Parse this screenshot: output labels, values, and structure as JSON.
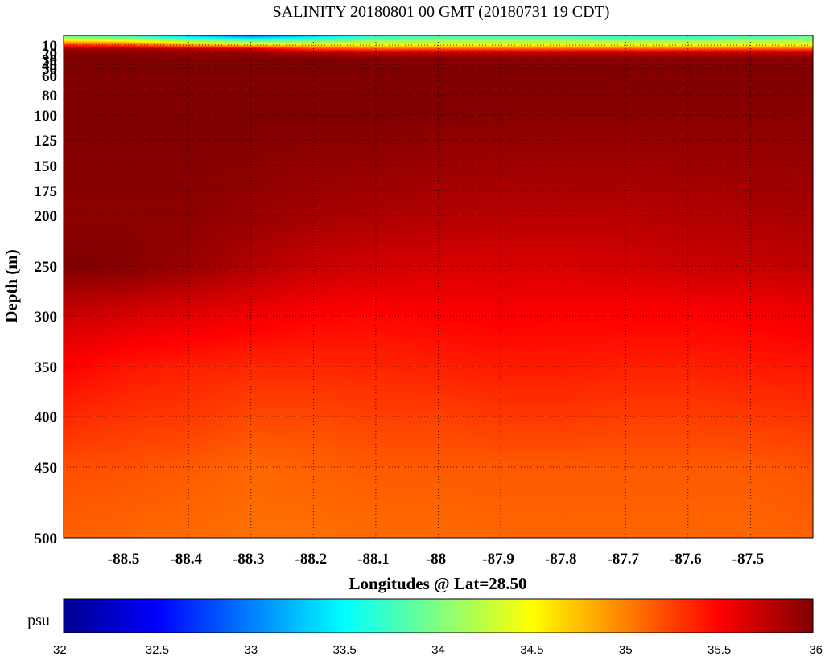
{
  "chart_data": {
    "type": "heatmap",
    "title": "SALINITY 20180801 00 GMT (20180731 19 CDT)",
    "xlabel": "Longitudes @ Lat=28.50",
    "ylabel": "Depth (m)",
    "xlim": [
      -88.6,
      -87.4
    ],
    "ylim": [
      500,
      5
    ],
    "x_ticks": [
      -88.5,
      -88.4,
      -88.3,
      -88.2,
      -88.1,
      -88,
      -87.9,
      -87.8,
      -87.7,
      -87.6,
      -87.5
    ],
    "x_tick_labels": [
      "-88.5",
      "-88.4",
      "-88.3",
      "-88.2",
      "-88.1",
      "-88",
      "-87.9",
      "-87.8",
      "-87.7",
      "-87.6",
      "-87.5"
    ],
    "y_ticks": [
      10,
      20,
      30,
      40,
      50,
      60,
      80,
      100,
      125,
      150,
      175,
      200,
      250,
      300,
      350,
      400,
      450,
      500
    ],
    "y_tick_labels": [
      "10",
      "20",
      "30",
      "40",
      "50",
      "60",
      "80",
      "100",
      "125",
      "150",
      "175",
      "200",
      "250",
      "300",
      "350",
      "400",
      "450",
      "500"
    ],
    "grid": true,
    "colorbar": {
      "unit": "psu",
      "range": [
        32,
        36
      ],
      "ticks": [
        32,
        32.5,
        33,
        33.5,
        34,
        34.5,
        35,
        35.5,
        36
      ],
      "tick_labels": [
        "32",
        "32.5",
        "33",
        "33.5",
        "34",
        "34.5",
        "35",
        "35.5",
        "36"
      ],
      "colormap": "jet"
    },
    "grid_x": [
      -88.6,
      -88.5,
      -88.4,
      -88.3,
      -88.2,
      -88.1,
      -88.0,
      -87.9,
      -87.8,
      -87.7,
      -87.6,
      -87.5,
      -87.4
    ],
    "grid_depth": [
      5,
      10,
      15,
      20,
      25,
      30,
      50,
      100,
      200,
      250,
      300,
      350,
      400,
      450,
      500
    ],
    "salinity": [
      [
        33.8,
        33.6,
        33.2,
        32.9,
        33.2,
        33.6,
        33.7,
        33.7,
        33.7,
        33.6,
        33.6,
        33.7,
        33.8
      ],
      [
        35.3,
        35.2,
        34.9,
        34.7,
        34.6,
        34.5,
        34.5,
        34.5,
        34.5,
        34.5,
        34.5,
        34.5,
        34.5
      ],
      [
        35.9,
        35.85,
        35.8,
        35.7,
        35.3,
        35.2,
        35.2,
        35.2,
        35.2,
        35.2,
        35.2,
        35.2,
        35.2
      ],
      [
        35.95,
        35.95,
        35.9,
        35.9,
        35.8,
        35.75,
        35.75,
        35.75,
        35.75,
        35.75,
        35.75,
        35.75,
        35.75
      ],
      [
        36.0,
        36.0,
        35.95,
        35.95,
        35.95,
        35.9,
        35.9,
        35.9,
        35.9,
        35.9,
        35.9,
        35.9,
        35.9
      ],
      [
        36.0,
        36.0,
        36.0,
        36.0,
        36.0,
        35.98,
        35.95,
        35.95,
        35.95,
        35.95,
        35.95,
        35.95,
        35.95
      ],
      [
        36.0,
        36.0,
        36.0,
        36.0,
        36.0,
        36.0,
        36.0,
        36.0,
        36.0,
        36.0,
        36.0,
        36.0,
        36.0
      ],
      [
        36.0,
        36.0,
        36.0,
        36.0,
        36.0,
        36.0,
        35.98,
        35.97,
        35.96,
        35.96,
        35.96,
        35.96,
        35.96
      ],
      [
        35.95,
        35.95,
        35.95,
        35.9,
        35.85,
        35.82,
        35.8,
        35.78,
        35.78,
        35.78,
        35.8,
        35.82,
        35.85
      ],
      [
        36.0,
        35.98,
        35.9,
        35.8,
        35.72,
        35.68,
        35.65,
        35.65,
        35.65,
        35.67,
        35.7,
        35.72,
        35.75
      ],
      [
        35.7,
        35.65,
        35.6,
        35.55,
        35.5,
        35.48,
        35.5,
        35.52,
        35.5,
        35.5,
        35.5,
        35.52,
        35.55
      ],
      [
        35.5,
        35.42,
        35.38,
        35.35,
        35.35,
        35.36,
        35.38,
        35.4,
        35.4,
        35.38,
        35.38,
        35.4,
        35.42
      ],
      [
        35.35,
        35.3,
        35.28,
        35.22,
        35.22,
        35.25,
        35.25,
        35.28,
        35.28,
        35.26,
        35.26,
        35.28,
        35.3
      ],
      [
        35.2,
        35.18,
        35.15,
        35.1,
        35.12,
        35.15,
        35.15,
        35.15,
        35.15,
        35.15,
        35.15,
        35.15,
        35.18
      ],
      [
        35.12,
        35.1,
        35.08,
        35.06,
        35.06,
        35.08,
        35.08,
        35.1,
        35.1,
        35.1,
        35.1,
        35.1,
        35.12
      ]
    ]
  }
}
